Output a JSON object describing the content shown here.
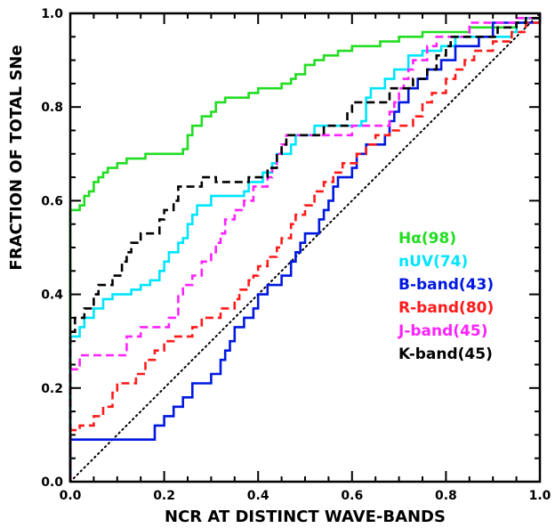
{
  "chart_data": {
    "type": "line",
    "title": "",
    "xlabel": "NCR AT DISTINCT WAVE-BANDS",
    "ylabel": "FRACTION OF TOTAL SNe",
    "xlim": [
      0,
      1
    ],
    "ylim": [
      0,
      1
    ],
    "x_ticks": [
      "0.0",
      "0.2",
      "0.4",
      "0.6",
      "0.8",
      "1.0"
    ],
    "y_ticks": [
      "0.0",
      "0.2",
      "0.4",
      "0.6",
      "0.8",
      "1.0"
    ],
    "grid": false,
    "legend_position": "right-middle",
    "reference_line": {
      "style": "dotted",
      "color": "#000000",
      "points": [
        [
          0,
          0
        ],
        [
          1,
          1
        ]
      ]
    },
    "series": [
      {
        "name": "Hα(98)",
        "color": "#22dd22",
        "dash": "solid",
        "points": [
          [
            0,
            0
          ],
          [
            0,
            0.58
          ],
          [
            0.02,
            0.59
          ],
          [
            0.03,
            0.61
          ],
          [
            0.04,
            0.62
          ],
          [
            0.05,
            0.64
          ],
          [
            0.06,
            0.65
          ],
          [
            0.07,
            0.66
          ],
          [
            0.08,
            0.67
          ],
          [
            0.1,
            0.68
          ],
          [
            0.12,
            0.69
          ],
          [
            0.16,
            0.7
          ],
          [
            0.24,
            0.71
          ],
          [
            0.25,
            0.74
          ],
          [
            0.26,
            0.76
          ],
          [
            0.28,
            0.78
          ],
          [
            0.3,
            0.79
          ],
          [
            0.31,
            0.81
          ],
          [
            0.33,
            0.82
          ],
          [
            0.38,
            0.83
          ],
          [
            0.4,
            0.84
          ],
          [
            0.45,
            0.85
          ],
          [
            0.47,
            0.86
          ],
          [
            0.48,
            0.87
          ],
          [
            0.5,
            0.89
          ],
          [
            0.52,
            0.9
          ],
          [
            0.54,
            0.91
          ],
          [
            0.57,
            0.92
          ],
          [
            0.6,
            0.93
          ],
          [
            0.66,
            0.94
          ],
          [
            0.7,
            0.95
          ],
          [
            0.75,
            0.96
          ],
          [
            0.85,
            0.97
          ],
          [
            0.95,
            0.98
          ],
          [
            0.97,
            0.99
          ],
          [
            1,
            1
          ]
        ]
      },
      {
        "name": "nUV(74)",
        "color": "#00e5ff",
        "dash": "solid",
        "points": [
          [
            0,
            0
          ],
          [
            0,
            0.31
          ],
          [
            0.02,
            0.33
          ],
          [
            0.03,
            0.35
          ],
          [
            0.05,
            0.37
          ],
          [
            0.07,
            0.39
          ],
          [
            0.09,
            0.4
          ],
          [
            0.13,
            0.41
          ],
          [
            0.15,
            0.42
          ],
          [
            0.17,
            0.43
          ],
          [
            0.19,
            0.45
          ],
          [
            0.2,
            0.47
          ],
          [
            0.21,
            0.49
          ],
          [
            0.23,
            0.51
          ],
          [
            0.24,
            0.52
          ],
          [
            0.25,
            0.55
          ],
          [
            0.26,
            0.57
          ],
          [
            0.27,
            0.59
          ],
          [
            0.3,
            0.61
          ],
          [
            0.37,
            0.62
          ],
          [
            0.38,
            0.64
          ],
          [
            0.41,
            0.66
          ],
          [
            0.43,
            0.68
          ],
          [
            0.44,
            0.7
          ],
          [
            0.47,
            0.72
          ],
          [
            0.48,
            0.74
          ],
          [
            0.52,
            0.76
          ],
          [
            0.62,
            0.77
          ],
          [
            0.63,
            0.82
          ],
          [
            0.64,
            0.84
          ],
          [
            0.67,
            0.86
          ],
          [
            0.69,
            0.88
          ],
          [
            0.72,
            0.91
          ],
          [
            0.75,
            0.92
          ],
          [
            0.79,
            0.93
          ],
          [
            0.82,
            0.95
          ],
          [
            0.94,
            0.96
          ],
          [
            0.95,
            0.98
          ],
          [
            0.97,
            0.99
          ],
          [
            1,
            1
          ]
        ]
      },
      {
        "name": "B-band(43)",
        "color": "#0018e0",
        "dash": "solid",
        "points": [
          [
            0,
            0
          ],
          [
            0,
            0.09
          ],
          [
            0.18,
            0.12
          ],
          [
            0.2,
            0.14
          ],
          [
            0.22,
            0.16
          ],
          [
            0.24,
            0.18
          ],
          [
            0.26,
            0.21
          ],
          [
            0.3,
            0.23
          ],
          [
            0.32,
            0.26
          ],
          [
            0.33,
            0.28
          ],
          [
            0.34,
            0.3
          ],
          [
            0.35,
            0.33
          ],
          [
            0.37,
            0.35
          ],
          [
            0.39,
            0.37
          ],
          [
            0.4,
            0.4
          ],
          [
            0.42,
            0.42
          ],
          [
            0.45,
            0.44
          ],
          [
            0.47,
            0.47
          ],
          [
            0.48,
            0.49
          ],
          [
            0.49,
            0.51
          ],
          [
            0.5,
            0.53
          ],
          [
            0.53,
            0.56
          ],
          [
            0.54,
            0.58
          ],
          [
            0.55,
            0.6
          ],
          [
            0.56,
            0.63
          ],
          [
            0.57,
            0.65
          ],
          [
            0.6,
            0.67
          ],
          [
            0.61,
            0.7
          ],
          [
            0.63,
            0.72
          ],
          [
            0.67,
            0.74
          ],
          [
            0.68,
            0.77
          ],
          [
            0.69,
            0.79
          ],
          [
            0.7,
            0.81
          ],
          [
            0.72,
            0.84
          ],
          [
            0.74,
            0.86
          ],
          [
            0.76,
            0.88
          ],
          [
            0.79,
            0.9
          ],
          [
            0.82,
            0.93
          ],
          [
            0.87,
            0.95
          ],
          [
            0.9,
            0.98
          ],
          [
            1,
            1
          ]
        ]
      },
      {
        "name": "R-band(80)",
        "color": "#ff1a1a",
        "dash": "dashed",
        "points": [
          [
            0,
            0
          ],
          [
            0,
            0.11
          ],
          [
            0.02,
            0.12
          ],
          [
            0.05,
            0.14
          ],
          [
            0.07,
            0.16
          ],
          [
            0.09,
            0.19
          ],
          [
            0.1,
            0.21
          ],
          [
            0.14,
            0.23
          ],
          [
            0.16,
            0.26
          ],
          [
            0.18,
            0.28
          ],
          [
            0.2,
            0.3
          ],
          [
            0.22,
            0.31
          ],
          [
            0.26,
            0.33
          ],
          [
            0.28,
            0.35
          ],
          [
            0.32,
            0.37
          ],
          [
            0.35,
            0.39
          ],
          [
            0.36,
            0.41
          ],
          [
            0.38,
            0.43
          ],
          [
            0.39,
            0.44
          ],
          [
            0.4,
            0.46
          ],
          [
            0.42,
            0.48
          ],
          [
            0.44,
            0.5
          ],
          [
            0.45,
            0.52
          ],
          [
            0.47,
            0.55
          ],
          [
            0.48,
            0.57
          ],
          [
            0.5,
            0.59
          ],
          [
            0.52,
            0.62
          ],
          [
            0.54,
            0.64
          ],
          [
            0.56,
            0.66
          ],
          [
            0.58,
            0.68
          ],
          [
            0.61,
            0.7
          ],
          [
            0.63,
            0.72
          ],
          [
            0.65,
            0.74
          ],
          [
            0.68,
            0.75
          ],
          [
            0.7,
            0.76
          ],
          [
            0.73,
            0.78
          ],
          [
            0.75,
            0.81
          ],
          [
            0.77,
            0.83
          ],
          [
            0.8,
            0.86
          ],
          [
            0.82,
            0.88
          ],
          [
            0.84,
            0.9
          ],
          [
            0.86,
            0.92
          ],
          [
            0.9,
            0.94
          ],
          [
            0.94,
            0.96
          ],
          [
            0.97,
            0.98
          ],
          [
            1,
            1
          ]
        ]
      },
      {
        "name": "J-band(45)",
        "color": "#ff22ff",
        "dash": "dashed",
        "points": [
          [
            0,
            0
          ],
          [
            0,
            0.24
          ],
          [
            0.02,
            0.27
          ],
          [
            0.12,
            0.31
          ],
          [
            0.15,
            0.33
          ],
          [
            0.21,
            0.35
          ],
          [
            0.23,
            0.4
          ],
          [
            0.24,
            0.42
          ],
          [
            0.26,
            0.44
          ],
          [
            0.28,
            0.47
          ],
          [
            0.3,
            0.49
          ],
          [
            0.31,
            0.51
          ],
          [
            0.32,
            0.53
          ],
          [
            0.33,
            0.56
          ],
          [
            0.35,
            0.58
          ],
          [
            0.37,
            0.6
          ],
          [
            0.39,
            0.63
          ],
          [
            0.42,
            0.65
          ],
          [
            0.43,
            0.67
          ],
          [
            0.44,
            0.7
          ],
          [
            0.45,
            0.72
          ],
          [
            0.46,
            0.74
          ],
          [
            0.6,
            0.76
          ],
          [
            0.68,
            0.79
          ],
          [
            0.69,
            0.81
          ],
          [
            0.7,
            0.84
          ],
          [
            0.71,
            0.86
          ],
          [
            0.72,
            0.88
          ],
          [
            0.73,
            0.9
          ],
          [
            0.76,
            0.93
          ],
          [
            0.78,
            0.95
          ],
          [
            0.85,
            0.98
          ],
          [
            0.95,
            0.99
          ],
          [
            1,
            1
          ]
        ]
      },
      {
        "name": "K-band(45)",
        "color": "#000000",
        "dash": "dashed",
        "points": [
          [
            0,
            0
          ],
          [
            0,
            0.32
          ],
          [
            0.01,
            0.35
          ],
          [
            0.03,
            0.37
          ],
          [
            0.05,
            0.4
          ],
          [
            0.06,
            0.42
          ],
          [
            0.09,
            0.44
          ],
          [
            0.11,
            0.47
          ],
          [
            0.12,
            0.49
          ],
          [
            0.13,
            0.51
          ],
          [
            0.15,
            0.53
          ],
          [
            0.19,
            0.56
          ],
          [
            0.2,
            0.58
          ],
          [
            0.22,
            0.6
          ],
          [
            0.23,
            0.63
          ],
          [
            0.28,
            0.65
          ],
          [
            0.3,
            0.65
          ],
          [
            0.31,
            0.64
          ],
          [
            0.38,
            0.65
          ],
          [
            0.42,
            0.67
          ],
          [
            0.44,
            0.7
          ],
          [
            0.45,
            0.72
          ],
          [
            0.46,
            0.74
          ],
          [
            0.5,
            0.74
          ],
          [
            0.54,
            0.76
          ],
          [
            0.58,
            0.76
          ],
          [
            0.59,
            0.79
          ],
          [
            0.6,
            0.81
          ],
          [
            0.64,
            0.81
          ],
          [
            0.68,
            0.84
          ],
          [
            0.73,
            0.86
          ],
          [
            0.76,
            0.88
          ],
          [
            0.78,
            0.91
          ],
          [
            0.8,
            0.93
          ],
          [
            0.81,
            0.95
          ],
          [
            0.91,
            0.97
          ],
          [
            0.95,
            0.98
          ],
          [
            0.97,
            0.99
          ],
          [
            1,
            1
          ]
        ]
      }
    ]
  }
}
